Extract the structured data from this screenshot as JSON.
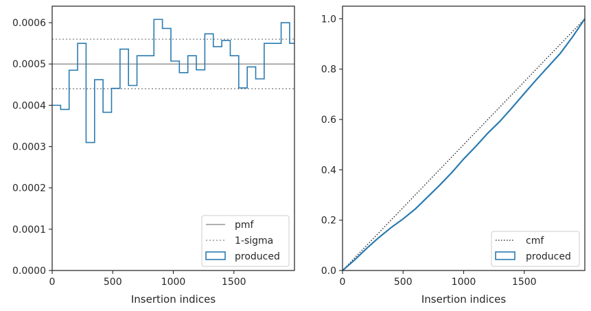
{
  "colors": {
    "produced": "#2a7ab0",
    "pmf": "#808080",
    "sigma": "#808080",
    "cmf": "#111111",
    "axes": "#262626"
  },
  "chart_data": [
    {
      "type": "line",
      "xlabel": "Insertion indices",
      "ylabel": "",
      "xlim": [
        0,
        2000
      ],
      "ylim": [
        0,
        0.00064
      ],
      "xticks": [
        0,
        500,
        1000,
        1500
      ],
      "xtick_labels": [
        "0",
        "500",
        "1000",
        "1500"
      ],
      "yticks": [
        0,
        0.0001,
        0.0002,
        0.0003,
        0.0004,
        0.0005,
        0.0006
      ],
      "ytick_labels": [
        "0.0000",
        "0.0001",
        "0.0002",
        "0.0003",
        "0.0004",
        "0.0005",
        "0.0006"
      ],
      "grid": false,
      "legend_position": "lower-right",
      "pmf": 0.0005,
      "sigma_band": [
        0.00044,
        0.00056
      ],
      "legend": [
        "pmf",
        "1-sigma",
        "produced"
      ],
      "series": [
        {
          "name": "produced",
          "style": "step",
          "bin_edges": [
            0,
            70,
            140,
            210,
            280,
            350,
            420,
            490,
            560,
            630,
            700,
            770,
            840,
            910,
            980,
            1050,
            1120,
            1190,
            1260,
            1330,
            1400,
            1470,
            1540,
            1610,
            1680,
            1750,
            1820,
            1890,
            1960,
            2000
          ],
          "values": [
            0.0004,
            0.00039,
            0.000485,
            0.00055,
            0.00031,
            0.000462,
            0.000383,
            0.000441,
            0.000536,
            0.000448,
            0.00052,
            0.00052,
            0.000608,
            0.000586,
            0.000507,
            0.000479,
            0.00052,
            0.000486,
            0.000573,
            0.000542,
            0.000557,
            0.00052,
            0.000442,
            0.000493,
            0.000464,
            0.00055,
            0.00055,
            0.0006,
            0.00055
          ]
        }
      ]
    },
    {
      "type": "line",
      "xlabel": "Insertion indices",
      "ylabel": "",
      "xlim": [
        0,
        2000
      ],
      "ylim": [
        0,
        1.05
      ],
      "xticks": [
        0,
        500,
        1000,
        1500
      ],
      "xtick_labels": [
        "0",
        "500",
        "1000",
        "1500"
      ],
      "yticks": [
        0,
        0.2,
        0.4,
        0.6,
        0.8,
        1.0
      ],
      "ytick_labels": [
        "0.0",
        "0.2",
        "0.4",
        "0.6",
        "0.8",
        "1.0"
      ],
      "grid": false,
      "legend_position": "lower-right",
      "legend": [
        "cmf",
        "produced"
      ],
      "series": [
        {
          "name": "cmf",
          "style": "dotted",
          "x": [
            0,
            2000
          ],
          "y": [
            0,
            1.0
          ]
        },
        {
          "name": "produced",
          "style": "step",
          "x": [
            0,
            100,
            200,
            300,
            400,
            500,
            600,
            700,
            800,
            900,
            1000,
            1100,
            1200,
            1300,
            1400,
            1500,
            1600,
            1700,
            1800,
            1900,
            2000
          ],
          "y": [
            0,
            0.042,
            0.088,
            0.131,
            0.17,
            0.205,
            0.244,
            0.291,
            0.338,
            0.388,
            0.443,
            0.493,
            0.546,
            0.593,
            0.647,
            0.703,
            0.758,
            0.811,
            0.864,
            0.929,
            1.0
          ]
        }
      ]
    }
  ]
}
